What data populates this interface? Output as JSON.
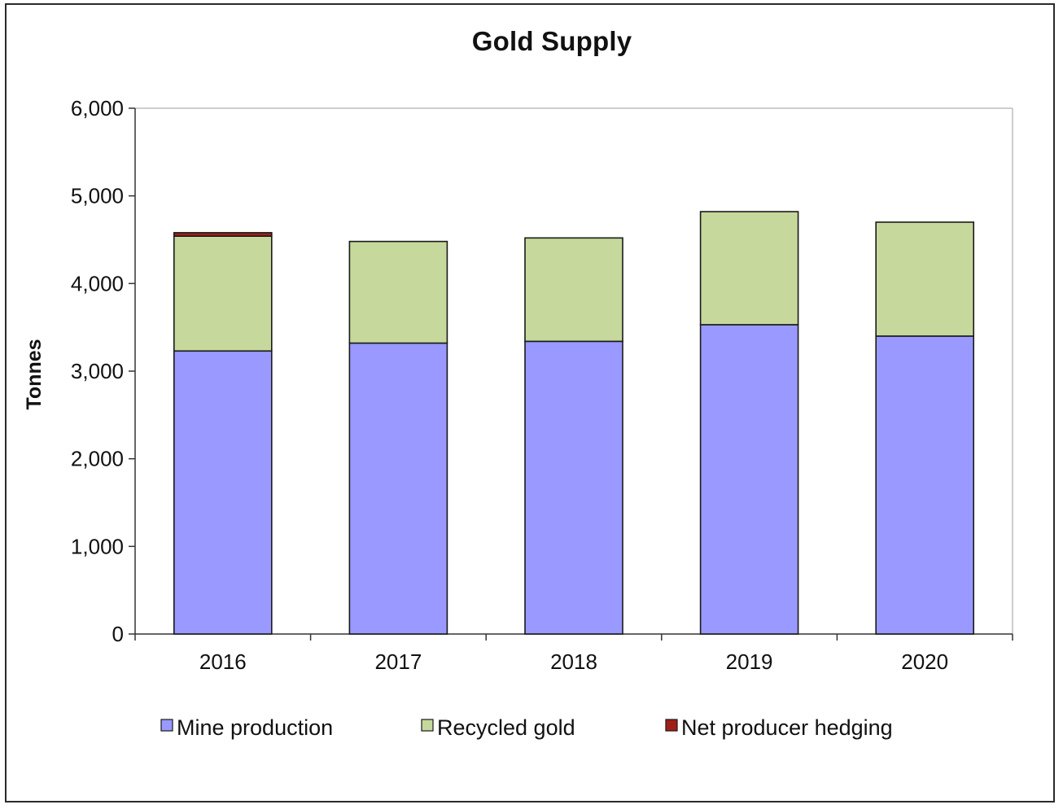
{
  "chart_data": {
    "type": "bar",
    "stacked": true,
    "title": "Gold Supply",
    "ylabel": "Tonnes",
    "xlabel": "",
    "ylim": [
      0,
      6000
    ],
    "yticks": [
      "0",
      "1,000",
      "2,000",
      "3,000",
      "4,000",
      "5,000",
      "6,000"
    ],
    "categories": [
      "2016",
      "2017",
      "2018",
      "2019",
      "2020"
    ],
    "series": [
      {
        "name": "Mine production",
        "color": "#9999ff",
        "values": [
          3230,
          3320,
          3340,
          3530,
          3400
        ]
      },
      {
        "name": "Recycled gold",
        "color": "#c6d89b",
        "values": [
          1310,
          1160,
          1180,
          1290,
          1300
        ]
      },
      {
        "name": "Net producer hedging",
        "color": "#a02018",
        "values": [
          40,
          0,
          0,
          0,
          0
        ]
      }
    ],
    "grid": false,
    "legend": "bottom"
  }
}
